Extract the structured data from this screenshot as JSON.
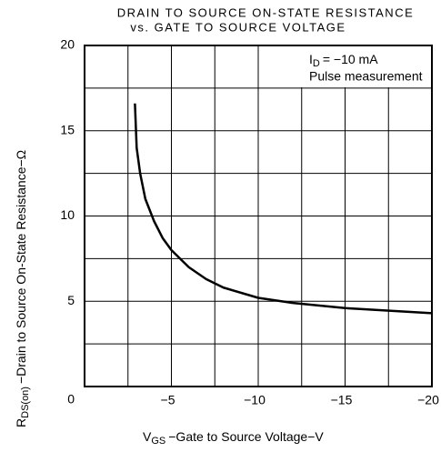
{
  "chart_data": {
    "type": "line",
    "title": [
      "DRAIN TO SOURCE ON-STATE RESISTANCE",
      "vs. GATE TO SOURCE VOLTAGE"
    ],
    "xlabel": {
      "base": "V",
      "sub": "GS",
      "rest": "−Gate to Source Voltage−V"
    },
    "ylabel": {
      "base": "R",
      "sub": "DS(on)",
      "rest": "−Drain to Source On-State Resistance−Ω"
    },
    "annotation": {
      "base": "I",
      "sub": "D",
      "rest": "= −10 mA",
      "line2": "Pulse measurement"
    },
    "x": [
      -2.9,
      -3.0,
      -3.2,
      -3.5,
      -4,
      -4.5,
      -5,
      -6,
      -7,
      -8,
      -10,
      -12,
      -15,
      -20
    ],
    "series": [
      {
        "color": "#000000",
        "values": [
          16.6,
          14.0,
          12.5,
          11.0,
          9.7,
          8.7,
          8.0,
          7.0,
          6.3,
          5.8,
          5.2,
          4.9,
          4.6,
          4.3
        ]
      }
    ],
    "xlim": [
      0,
      -20
    ],
    "xticks": [
      {
        "value": -5,
        "label": "−5"
      },
      {
        "value": -10,
        "label": "−10"
      },
      {
        "value": -15,
        "label": "−15"
      },
      {
        "value": -20,
        "label": "−20"
      }
    ],
    "xgrid": [
      -2.5,
      -5,
      -7.5,
      -10,
      -12.5,
      -15,
      -17.5
    ],
    "ylim": [
      0,
      20
    ],
    "yticks": [
      0,
      5,
      10,
      15,
      20
    ],
    "ygrid": [
      2.5,
      5,
      7.5,
      10,
      12.5,
      15,
      17.5
    ],
    "grid": true
  }
}
